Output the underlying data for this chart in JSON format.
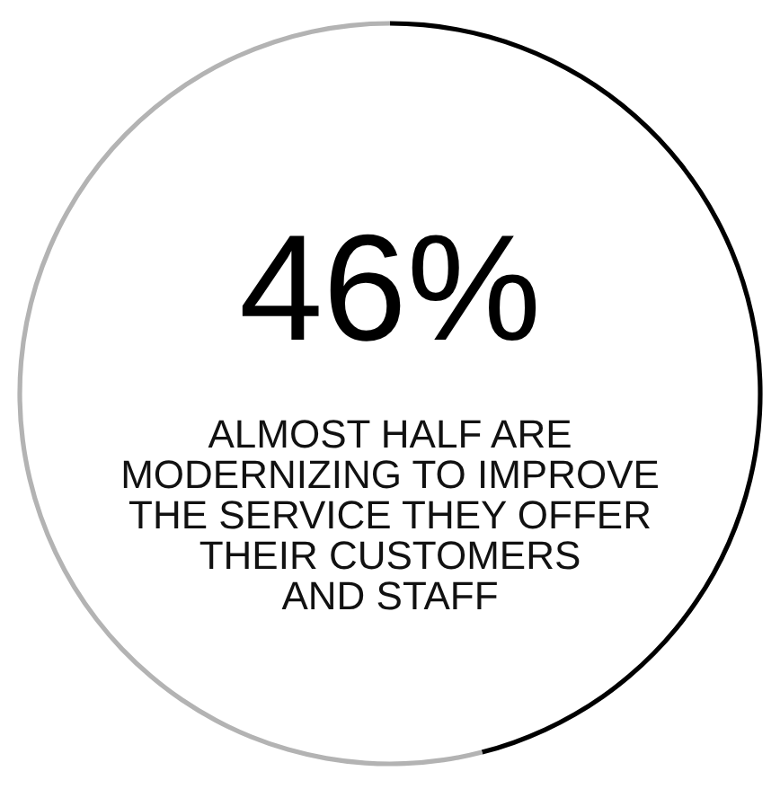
{
  "chart_data": {
    "type": "donut",
    "categories": [
      null,
      null
    ],
    "values": [
      46,
      54
    ],
    "colors": [
      "#000000",
      "#b3b3b3"
    ],
    "value_labels": [
      "46%",
      null
    ],
    "annotations": [
      "ALMOST HALF ARE\nMODERNIZING TO IMPROVE\nTHE SERVICE THEY OFFER\nTHEIR CUSTOMERS\nAND STAFF"
    ]
  }
}
